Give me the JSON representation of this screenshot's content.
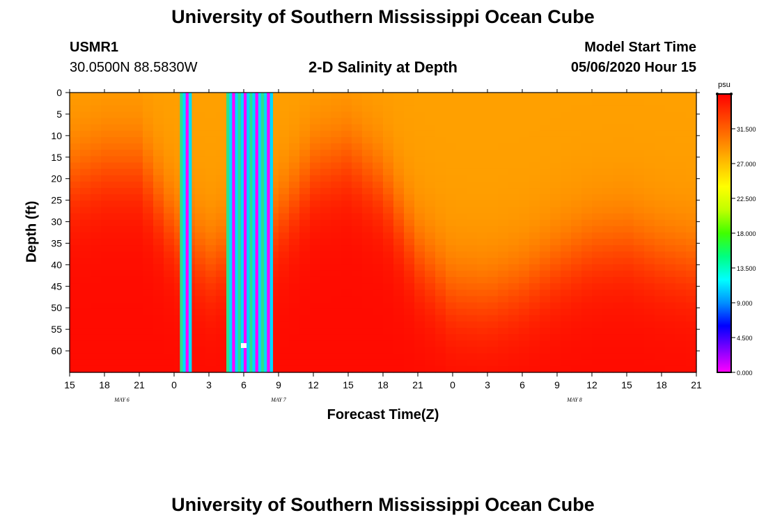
{
  "header": {
    "title": "University of Southern Mississippi Ocean Cube",
    "station_id": "USMR1",
    "station_coords": "30.0500N 88.5830W",
    "plot_title": "2-D Salinity at Depth",
    "model_label": "Model Start Time",
    "model_time": "05/06/2020 Hour 15"
  },
  "footer": {
    "title": "University of Southern Mississippi Ocean Cube"
  },
  "chart_data": {
    "type": "heatmap",
    "title": "2-D Salinity at Depth",
    "xlabel": "Forecast Time(Z)",
    "ylabel": "Depth (ft)",
    "x_ticks": [
      "15",
      "18",
      "21",
      "0",
      "3",
      "6",
      "9",
      "12",
      "15",
      "18",
      "21",
      "0",
      "3",
      "6",
      "9",
      "12",
      "15",
      "18",
      "21"
    ],
    "date_labels": [
      {
        "label": "MAY 6",
        "hour_index": 1.5
      },
      {
        "label": "MAY 7",
        "hour_index": 6.0
      },
      {
        "label": "MAY 8",
        "hour_index": 14.5
      }
    ],
    "ylim": [
      0,
      65
    ],
    "y_ticks": [
      0,
      5,
      10,
      15,
      20,
      25,
      30,
      35,
      40,
      45,
      50,
      55,
      60
    ],
    "colorbar": {
      "unit": "psu",
      "range": [
        0,
        36
      ],
      "tick_values": [
        0,
        4.5,
        9,
        13.5,
        18,
        22.5,
        27,
        31.5
      ],
      "tick_labels": [
        "0.000",
        "4.500",
        "9.000",
        "13.500",
        "18.000",
        "22.500",
        "27.000",
        "31.500"
      ],
      "colors": [
        "#ff00ff",
        "#8000ff",
        "#0000ff",
        "#0090ff",
        "#00ffff",
        "#00ff80",
        "#40ff00",
        "#c0ff00",
        "#ffff00",
        "#ffc000",
        "#ff8000",
        "#ff4000",
        "#ff0000"
      ]
    },
    "surface_salinity_psu": 28.5,
    "bottom_salinity_psu": 35.5,
    "halocline_depth_ft_by_hour": [
      {
        "hour": 0,
        "depth": 20
      },
      {
        "hour": 3,
        "depth": 17
      },
      {
        "hour": 6,
        "depth": 17
      },
      {
        "hour": 9,
        "depth": 32
      },
      {
        "hour": 12,
        "depth": 40
      },
      {
        "hour": 15,
        "depth": 35
      },
      {
        "hour": 18,
        "depth": 30
      },
      {
        "hour": 21,
        "depth": 18
      },
      {
        "hour": 24,
        "depth": 15
      },
      {
        "hour": 27,
        "depth": 22
      },
      {
        "hour": 30,
        "depth": 38
      },
      {
        "hour": 33,
        "depth": 47
      },
      {
        "hour": 36,
        "depth": 48
      },
      {
        "hour": 39,
        "depth": 45
      },
      {
        "hour": 42,
        "depth": 40
      },
      {
        "hour": 45,
        "depth": 36
      },
      {
        "hour": 48,
        "depth": 35
      },
      {
        "hour": 51,
        "depth": 38
      },
      {
        "hour": 54,
        "depth": 40
      }
    ],
    "missing_data_columns_hours": [
      10,
      14,
      15,
      16,
      17
    ],
    "missing_data_color_sequence": [
      "#2ee08a",
      "#00d8ff",
      "#ff00ff",
      "#00d8ff"
    ]
  }
}
